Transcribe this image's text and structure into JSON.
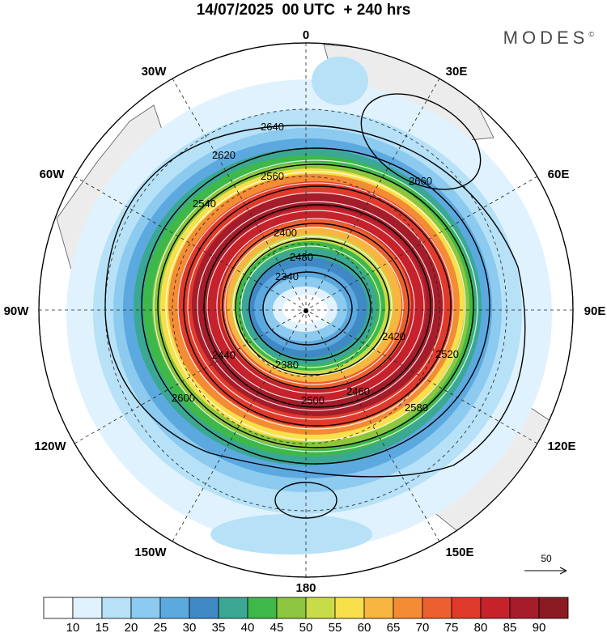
{
  "header": {
    "title": "14/07/2025  00 UTC  + 240 hrs",
    "brand": "MODES",
    "brand_mark": "©"
  },
  "map": {
    "projection": "polar-stereographic-south",
    "grid": true,
    "lon_labels": {
      "lon_0": "0",
      "lon_30e": "30E",
      "lon_60e": "60E",
      "lon_90e": "90E",
      "lon_120e": "120E",
      "lon_150e": "150E",
      "lon_180": "180",
      "lon_150w": "150W",
      "lon_120w": "120W",
      "lon_90w": "90W",
      "lon_60w": "60W",
      "lon_30w": "30W"
    },
    "contour_labels": [
      "2640",
      "2620",
      "2560",
      "2660",
      "2400",
      "2340",
      "2380",
      "2440",
      "2600",
      "2540",
      "2500",
      "2580",
      "2420",
      "2460",
      "2520",
      "2480"
    ],
    "wind_reference": {
      "label": "50"
    }
  },
  "colorbar": {
    "colors": [
      "#ffffff",
      "#dff2fd",
      "#b6e1f7",
      "#8ccaef",
      "#5ca9e0",
      "#3f8ac5",
      "#3aa892",
      "#3fb84a",
      "#8cc63e",
      "#c8dc4a",
      "#f7e04b",
      "#f8b540",
      "#f48b35",
      "#ec5f2e",
      "#df3a2c",
      "#c6222c",
      "#a51d2a",
      "#8b1a22"
    ],
    "ticks": [
      "10",
      "15",
      "20",
      "25",
      "30",
      "35",
      "40",
      "45",
      "50",
      "55",
      "60",
      "65",
      "70",
      "75",
      "80",
      "85",
      "90"
    ]
  }
}
